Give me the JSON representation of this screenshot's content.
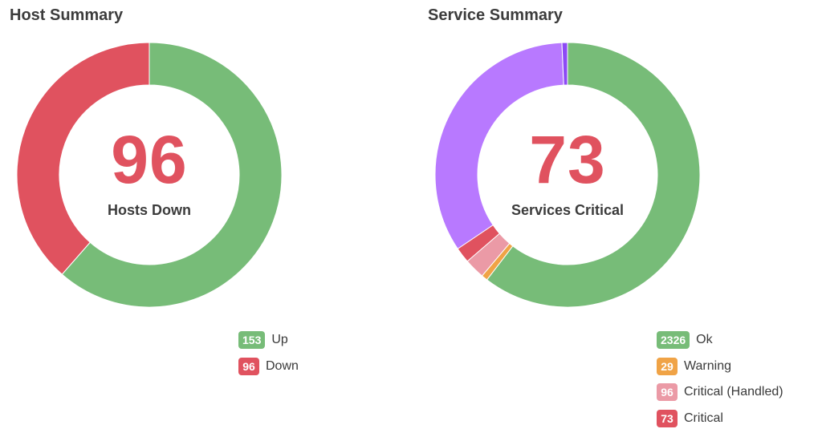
{
  "colors": {
    "green": "#77bc78",
    "red": "#e0525f",
    "orange": "#f0a346",
    "pink": "#eb9aa6",
    "purple": "#b879ff",
    "violet": "#8d4af5"
  },
  "host_summary": {
    "title": "Host Summary",
    "center_value": "96",
    "center_label": "Hosts Down",
    "legend": [
      {
        "count": "153",
        "label": "Up",
        "color": "#77bc78"
      },
      {
        "count": "96",
        "label": "Down",
        "color": "#e0525f"
      }
    ]
  },
  "service_summary": {
    "title": "Service Summary",
    "center_value": "73",
    "center_label": "Services Critical",
    "legend": [
      {
        "count": "2326",
        "label": "Ok",
        "color": "#77bc78"
      },
      {
        "count": "29",
        "label": "Warning",
        "color": "#f0a346"
      },
      {
        "count": "96",
        "label": "Critical (Handled)",
        "color": "#eb9aa6"
      },
      {
        "count": "73",
        "label": "Critical",
        "color": "#e0525f"
      }
    ]
  },
  "chart_data": [
    {
      "type": "pie",
      "series": [
        {
          "value": 153,
          "color": "#77bc78"
        },
        {
          "value": 96,
          "color": "#e0525f"
        }
      ]
    },
    {
      "type": "pie",
      "series": [
        {
          "value": 2326,
          "color": "#77bc78"
        },
        {
          "value": 29,
          "color": "#f0a346"
        },
        {
          "value": 96,
          "color": "#eb9aa6"
        },
        {
          "value": 73,
          "color": "#e0525f"
        },
        {
          "value": 1300,
          "color": "#b879ff"
        },
        {
          "value": 26,
          "color": "#8d4af5"
        }
      ]
    }
  ]
}
